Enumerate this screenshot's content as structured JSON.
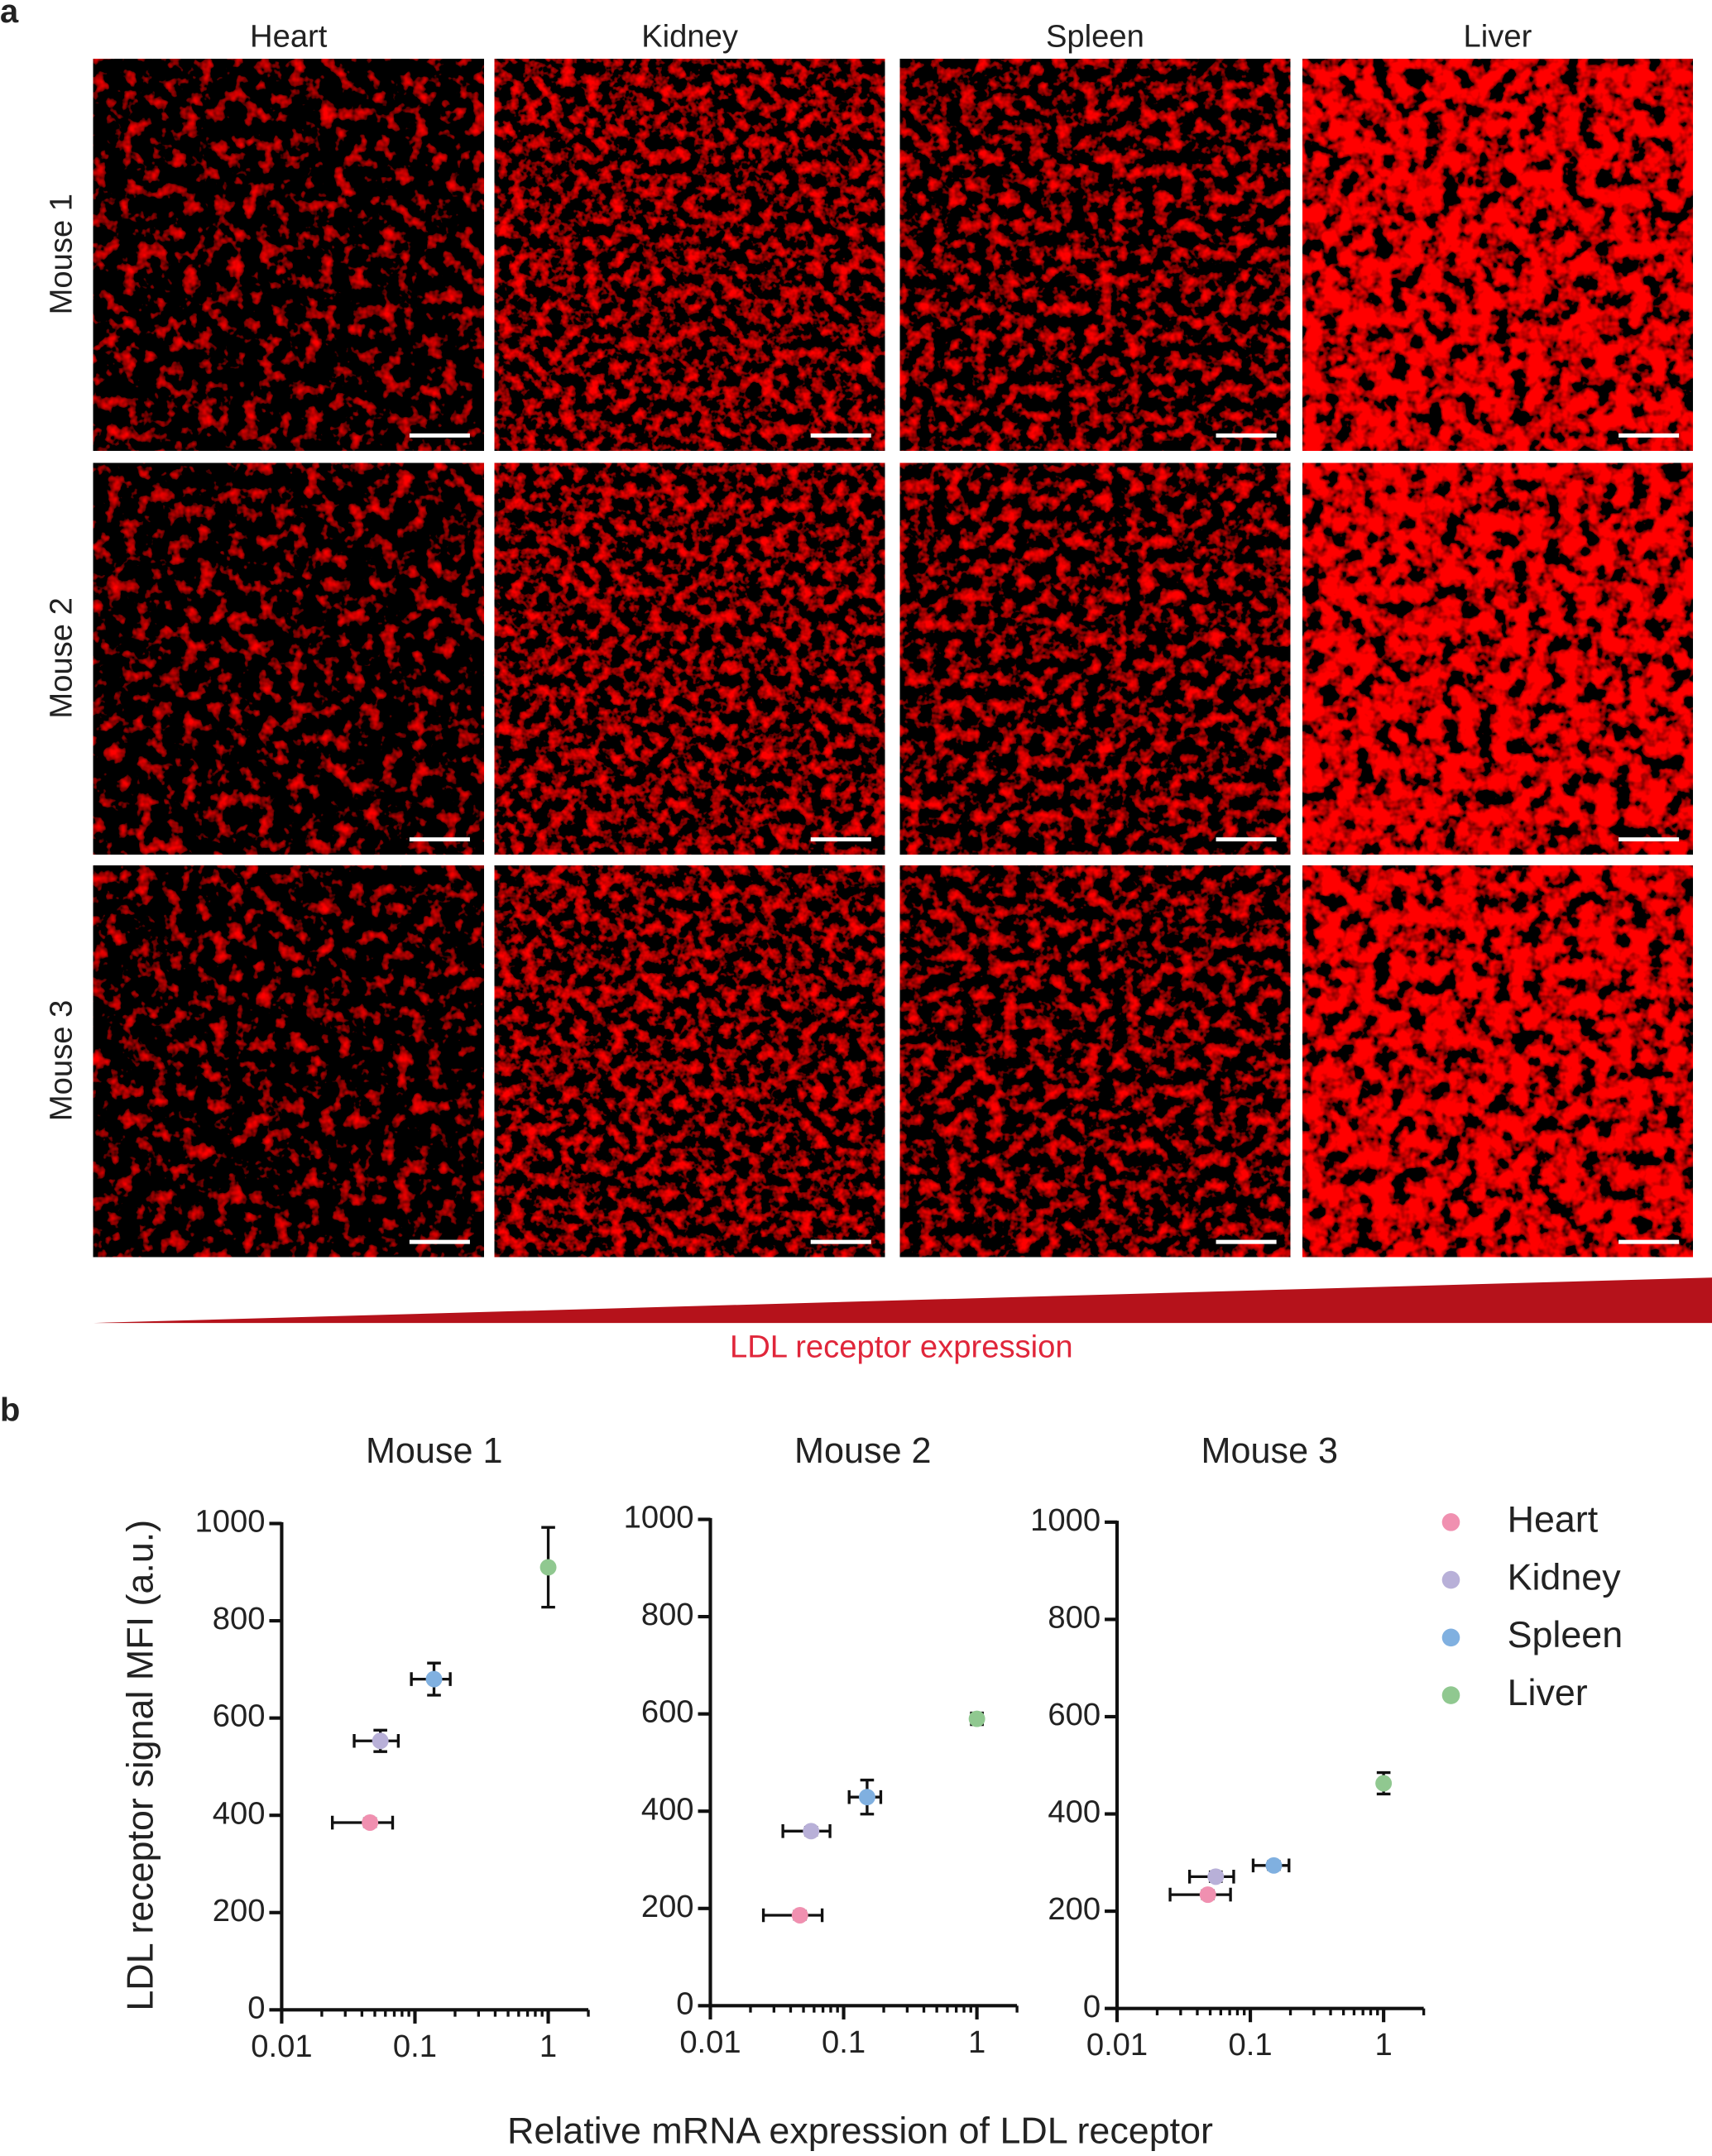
{
  "panel_a": {
    "label": "a",
    "columns": [
      "Heart",
      "Kidney",
      "Spleen",
      "Liver"
    ],
    "rows": [
      "Mouse 1",
      "Mouse 2",
      "Mouse 3"
    ],
    "gradient_label": "LDL receptor expression"
  },
  "panel_b": {
    "label": "b",
    "xlabel": "Relative mRNA expression of LDL receptor",
    "ylabel": "LDL receptor signal MFI (a.u.)",
    "legend": [
      {
        "name": "Heart",
        "color": "#f090b0"
      },
      {
        "name": "Kidney",
        "color": "#b8b0d8"
      },
      {
        "name": "Spleen",
        "color": "#80b0e0"
      },
      {
        "name": "Liver",
        "color": "#90c890"
      }
    ]
  },
  "chart_data": [
    {
      "type": "scatter",
      "title": "Mouse 1",
      "xscale": "log",
      "xlim": [
        0.01,
        2
      ],
      "xticks": [
        0.01,
        0.1,
        1
      ],
      "xticks_minor": [
        0.02,
        0.03,
        0.04,
        0.05,
        0.06,
        0.07,
        0.08,
        0.09,
        0.2,
        0.3,
        0.4,
        0.5,
        0.6,
        0.7,
        0.8,
        0.9,
        2
      ],
      "ylim": [
        0,
        1000
      ],
      "yticks": [
        0,
        200,
        400,
        600,
        800,
        1000
      ],
      "series": [
        {
          "x": [
            0.046
          ],
          "values": [
            385
          ],
          "xerr": [
            0.022
          ],
          "yerr": [
            8
          ]
        },
        {
          "x": [
            0.055
          ],
          "values": [
            553
          ],
          "xerr": [
            0.02
          ],
          "yerr": [
            22
          ]
        },
        {
          "x": [
            0.139
          ],
          "values": [
            680
          ],
          "xerr": [
            0.045
          ],
          "yerr": [
            33
          ]
        },
        {
          "x": [
            1
          ],
          "values": [
            910
          ],
          "xerr": [
            0.02
          ],
          "yerr": [
            82
          ]
        }
      ]
    },
    {
      "type": "scatter",
      "title": "Mouse 2",
      "xscale": "log",
      "xlim": [
        0.01,
        2
      ],
      "xticks": [
        0.01,
        0.1,
        1
      ],
      "xticks_minor": [
        0.02,
        0.03,
        0.04,
        0.05,
        0.06,
        0.07,
        0.08,
        0.09,
        0.2,
        0.3,
        0.4,
        0.5,
        0.6,
        0.7,
        0.8,
        0.9,
        2
      ],
      "ylim": [
        0,
        1000
      ],
      "yticks": [
        0,
        200,
        400,
        600,
        800,
        1000
      ],
      "series": [
        {
          "x": [
            0.047
          ],
          "values": [
            186
          ],
          "xerr": [
            0.022
          ],
          "yerr": [
            8
          ]
        },
        {
          "x": [
            0.057
          ],
          "values": [
            359
          ],
          "xerr": [
            0.022
          ],
          "yerr": [
            8
          ]
        },
        {
          "x": [
            0.15
          ],
          "values": [
            429
          ],
          "xerr": [
            0.04
          ],
          "yerr": [
            35
          ]
        },
        {
          "x": [
            1
          ],
          "values": [
            590
          ],
          "xerr": [
            0.02
          ],
          "yerr": [
            12
          ]
        }
      ]
    },
    {
      "type": "scatter",
      "title": "Mouse 3",
      "xscale": "log",
      "xlim": [
        0.01,
        2
      ],
      "xticks": [
        0.01,
        0.1,
        1
      ],
      "xticks_minor": [
        0.02,
        0.03,
        0.04,
        0.05,
        0.06,
        0.07,
        0.08,
        0.09,
        0.2,
        0.3,
        0.4,
        0.5,
        0.6,
        0.7,
        0.8,
        0.9,
        2
      ],
      "ylim": [
        0,
        1000
      ],
      "yticks": [
        0,
        200,
        400,
        600,
        800,
        1000
      ],
      "series": [
        {
          "x": [
            0.048
          ],
          "values": [
            234
          ],
          "xerr": [
            0.023
          ],
          "yerr": [
            8
          ]
        },
        {
          "x": [
            0.055
          ],
          "values": [
            271
          ],
          "xerr": [
            0.02
          ],
          "yerr": [
            10
          ]
        },
        {
          "x": [
            0.15
          ],
          "values": [
            294
          ],
          "xerr": [
            0.045
          ],
          "yerr": [
            8
          ]
        },
        {
          "x": [
            1
          ],
          "values": [
            463
          ],
          "xerr": [
            0.02
          ],
          "yerr": [
            22
          ]
        }
      ]
    }
  ]
}
